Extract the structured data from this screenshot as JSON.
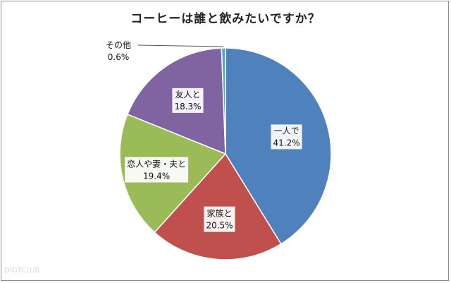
{
  "watermark": "DIOTCLUB",
  "chart_data": {
    "type": "pie",
    "title": "コーヒーは誰と飲みたいですか？",
    "slices": [
      {
        "label": "一人で",
        "value": 41.2,
        "value_text": "41.2%",
        "color": "#4f81bd"
      },
      {
        "label": "家族と",
        "value": 20.5,
        "value_text": "20.5%",
        "color": "#c0504d"
      },
      {
        "label": "恋人や妻・夫と",
        "value": 19.4,
        "value_text": "19.4%",
        "color": "#9bbb59"
      },
      {
        "label": "友人と",
        "value": 18.3,
        "value_text": "18.3%",
        "color": "#8064a2"
      },
      {
        "label": "その他",
        "value": 0.6,
        "value_text": "0.6%",
        "color": "#4bacc6"
      }
    ],
    "start_angle_deg": 0,
    "direction": "clockwise",
    "legend": "none",
    "data_labels": "inside, callout for その他"
  }
}
